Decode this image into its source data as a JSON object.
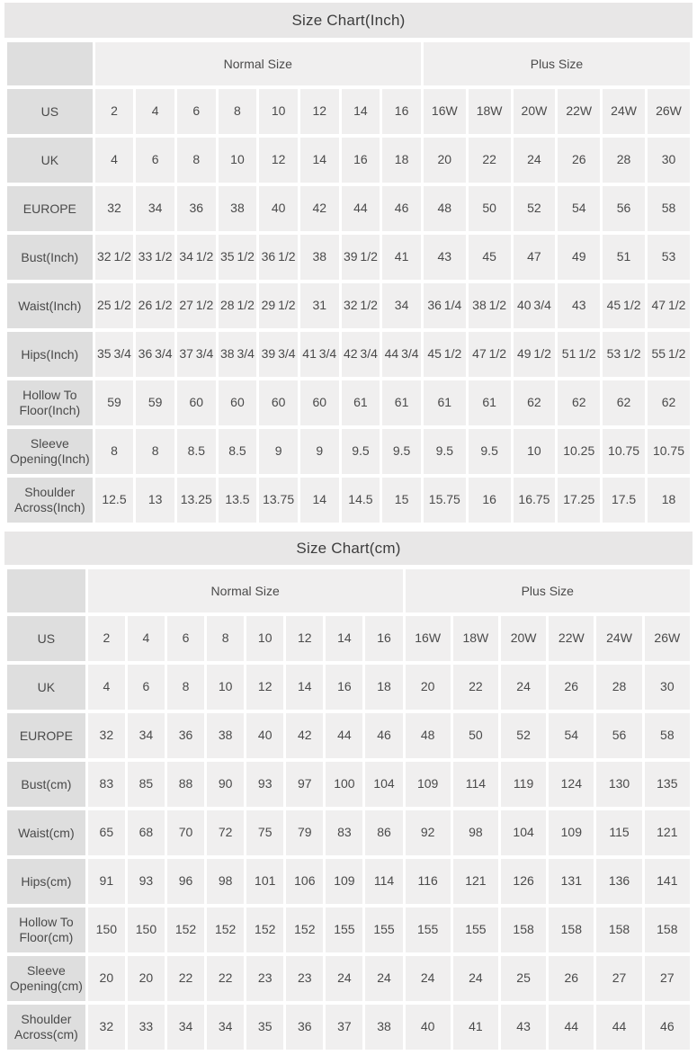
{
  "style_colors": {
    "page_background": "#ffffff",
    "title_bar_bg": "#e8e7e7",
    "row_header_bg": "#dedede",
    "data_cell_bg": "#f0efef",
    "text": "#4a4a4a"
  },
  "chart_data": [
    {
      "type": "table",
      "title": "Size Chart(Inch)",
      "column_groups": [
        {
          "label": "Normal Size",
          "span": 8
        },
        {
          "label": "Plus Size",
          "span": 6
        }
      ],
      "rows": [
        {
          "label": "US",
          "values": [
            "2",
            "4",
            "6",
            "8",
            "10",
            "12",
            "14",
            "16",
            "16W",
            "18W",
            "20W",
            "22W",
            "24W",
            "26W"
          ]
        },
        {
          "label": "UK",
          "values": [
            "4",
            "6",
            "8",
            "10",
            "12",
            "14",
            "16",
            "18",
            "20",
            "22",
            "24",
            "26",
            "28",
            "30"
          ]
        },
        {
          "label": "EUROPE",
          "values": [
            "32",
            "34",
            "36",
            "38",
            "40",
            "42",
            "44",
            "46",
            "48",
            "50",
            "52",
            "54",
            "56",
            "58"
          ]
        },
        {
          "label": "Bust(Inch)",
          "values": [
            "32 1/2",
            "33 1/2",
            "34 1/2",
            "35 1/2",
            "36 1/2",
            "38",
            "39 1/2",
            "41",
            "43",
            "45",
            "47",
            "49",
            "51",
            "53"
          ]
        },
        {
          "label": "Waist(Inch)",
          "values": [
            "25 1/2",
            "26 1/2",
            "27 1/2",
            "28 1/2",
            "29 1/2",
            "31",
            "32 1/2",
            "34",
            "36 1/4",
            "38 1/2",
            "40 3/4",
            "43",
            "45 1/2",
            "47 1/2"
          ]
        },
        {
          "label": "Hips(Inch)",
          "values": [
            "35 3/4",
            "36 3/4",
            "37 3/4",
            "38 3/4",
            "39 3/4",
            "41 3/4",
            "42 3/4",
            "44 3/4",
            "45 1/2",
            "47 1/2",
            "49 1/2",
            "51 1/2",
            "53 1/2",
            "55 1/2"
          ]
        },
        {
          "label": "Hollow To Floor(Inch)",
          "values": [
            "59",
            "59",
            "60",
            "60",
            "60",
            "60",
            "61",
            "61",
            "61",
            "61",
            "62",
            "62",
            "62",
            "62"
          ]
        },
        {
          "label": "Sleeve Opening(Inch)",
          "values": [
            "8",
            "8",
            "8.5",
            "8.5",
            "9",
            "9",
            "9.5",
            "9.5",
            "9.5",
            "9.5",
            "10",
            "10.25",
            "10.75",
            "10.75"
          ]
        },
        {
          "label": "Shoulder Across(Inch)",
          "values": [
            "12.5",
            "13",
            "13.25",
            "13.5",
            "13.75",
            "14",
            "14.5",
            "15",
            "15.75",
            "16",
            "16.75",
            "17.25",
            "17.5",
            "18"
          ]
        }
      ]
    },
    {
      "type": "table",
      "title": "Size Chart(cm)",
      "column_groups": [
        {
          "label": "Normal Size",
          "span": 8
        },
        {
          "label": "Plus Size",
          "span": 6
        }
      ],
      "rows": [
        {
          "label": "US",
          "values": [
            "2",
            "4",
            "6",
            "8",
            "10",
            "12",
            "14",
            "16",
            "16W",
            "18W",
            "20W",
            "22W",
            "24W",
            "26W"
          ]
        },
        {
          "label": "UK",
          "values": [
            "4",
            "6",
            "8",
            "10",
            "12",
            "14",
            "16",
            "18",
            "20",
            "22",
            "24",
            "26",
            "28",
            "30"
          ]
        },
        {
          "label": "EUROPE",
          "values": [
            "32",
            "34",
            "36",
            "38",
            "40",
            "42",
            "44",
            "46",
            "48",
            "50",
            "52",
            "54",
            "56",
            "58"
          ]
        },
        {
          "label": "Bust(cm)",
          "values": [
            "83",
            "85",
            "88",
            "90",
            "93",
            "97",
            "100",
            "104",
            "109",
            "114",
            "119",
            "124",
            "130",
            "135"
          ]
        },
        {
          "label": "Waist(cm)",
          "values": [
            "65",
            "68",
            "70",
            "72",
            "75",
            "79",
            "83",
            "86",
            "92",
            "98",
            "104",
            "109",
            "115",
            "121"
          ]
        },
        {
          "label": "Hips(cm)",
          "values": [
            "91",
            "93",
            "96",
            "98",
            "101",
            "106",
            "109",
            "114",
            "116",
            "121",
            "126",
            "131",
            "136",
            "141"
          ]
        },
        {
          "label": "Hollow To Floor(cm)",
          "values": [
            "150",
            "150",
            "152",
            "152",
            "152",
            "152",
            "155",
            "155",
            "155",
            "155",
            "158",
            "158",
            "158",
            "158"
          ]
        },
        {
          "label": "Sleeve Opening(cm)",
          "values": [
            "20",
            "20",
            "22",
            "22",
            "23",
            "23",
            "24",
            "24",
            "24",
            "24",
            "25",
            "26",
            "27",
            "27"
          ]
        },
        {
          "label": "Shoulder Across(cm)",
          "values": [
            "32",
            "33",
            "34",
            "34",
            "35",
            "36",
            "37",
            "38",
            "40",
            "41",
            "43",
            "44",
            "44",
            "46"
          ]
        }
      ]
    }
  ]
}
